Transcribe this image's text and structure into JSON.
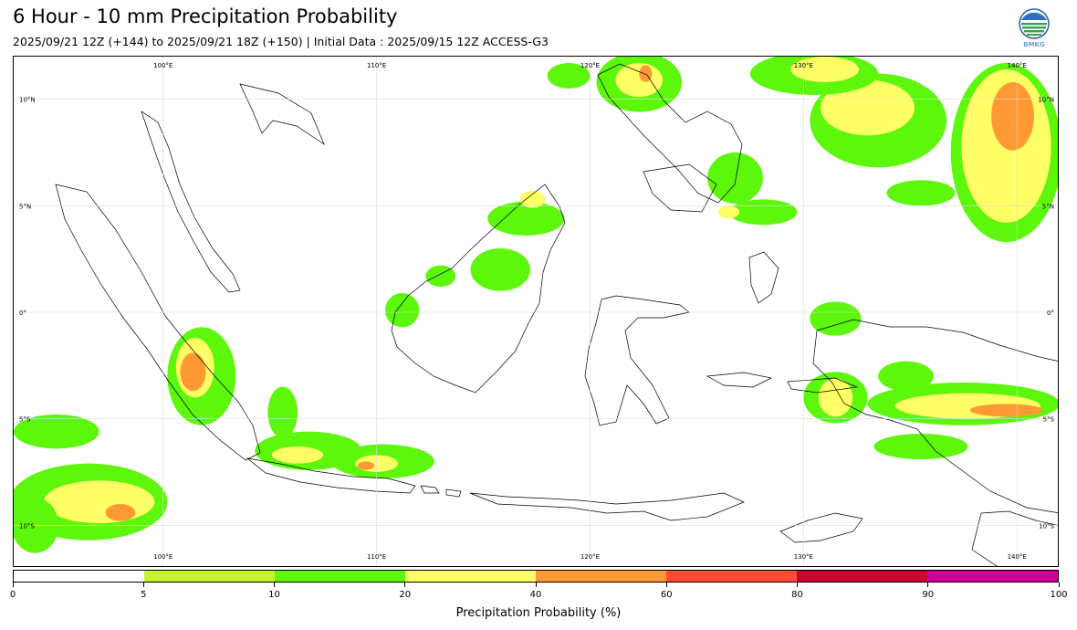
{
  "header": {
    "title": "6 Hour - 10 mm Precipitation Probability",
    "subtitle": "2025/09/21 12Z (+144) to 2025/09/21 18Z (+150) | Initial Data : 2025/09/15 12Z ACCESS-G3"
  },
  "logo": {
    "text": "BMKG",
    "icon": "bmkg-logo-icon"
  },
  "map": {
    "region": "Indonesia",
    "lon_range": [
      93,
      142
    ],
    "lat_range": [
      -12,
      12
    ],
    "grid": true,
    "lon_labels": [
      "100°E",
      "110°E",
      "120°E",
      "130°E",
      "140°E"
    ],
    "lat_labels": [
      "10°N",
      "5°N",
      "0°",
      "5°S",
      "10°S"
    ]
  },
  "colorbar": {
    "title": "Precipitation Probability (%)",
    "ticks": [
      "0",
      "5",
      "10",
      "20",
      "40",
      "60",
      "80",
      "90",
      "100"
    ],
    "colors": [
      "#ffffff",
      "#c7f232",
      "#5cf70a",
      "#ffff66",
      "#ff9933",
      "#ff4d33",
      "#cc0033",
      "#cc0099"
    ]
  },
  "precip_areas": [
    {
      "level": 10,
      "lon": 139.5,
      "lat": 7.5,
      "rx": 2.6,
      "ry": 4.2
    },
    {
      "level": 20,
      "lon": 139.5,
      "lat": 7.8,
      "rx": 2.1,
      "ry": 3.6
    },
    {
      "level": 40,
      "lon": 139.8,
      "lat": 9.2,
      "rx": 1.0,
      "ry": 1.6
    },
    {
      "level": 10,
      "lon": 133.5,
      "lat": 9.0,
      "rx": 3.2,
      "ry": 2.2
    },
    {
      "level": 20,
      "lon": 133.0,
      "lat": 9.6,
      "rx": 2.2,
      "ry": 1.3
    },
    {
      "level": 10,
      "lon": 130.5,
      "lat": 11.2,
      "rx": 3.0,
      "ry": 1.0
    },
    {
      "level": 20,
      "lon": 131.0,
      "lat": 11.4,
      "rx": 1.6,
      "ry": 0.6
    },
    {
      "level": 10,
      "lon": 135.5,
      "lat": 5.6,
      "rx": 1.6,
      "ry": 0.6
    },
    {
      "level": 10,
      "lon": 122.3,
      "lat": 10.8,
      "rx": 2.0,
      "ry": 1.4
    },
    {
      "level": 20,
      "lon": 122.3,
      "lat": 10.9,
      "rx": 1.1,
      "ry": 0.8
    },
    {
      "level": 40,
      "lon": 122.6,
      "lat": 11.2,
      "rx": 0.3,
      "ry": 0.4
    },
    {
      "level": 10,
      "lon": 119.0,
      "lat": 11.1,
      "rx": 1.0,
      "ry": 0.6
    },
    {
      "level": 10,
      "lon": 126.8,
      "lat": 6.3,
      "rx": 1.3,
      "ry": 1.2
    },
    {
      "level": 10,
      "lon": 128.1,
      "lat": 4.7,
      "rx": 1.6,
      "ry": 0.6
    },
    {
      "level": 20,
      "lon": 126.5,
      "lat": 4.7,
      "rx": 0.5,
      "ry": 0.3
    },
    {
      "level": 10,
      "lon": 117.0,
      "lat": 4.4,
      "rx": 1.8,
      "ry": 0.8
    },
    {
      "level": 20,
      "lon": 117.3,
      "lat": 5.3,
      "rx": 0.6,
      "ry": 0.4
    },
    {
      "level": 10,
      "lon": 115.8,
      "lat": 2.0,
      "rx": 1.4,
      "ry": 1.0
    },
    {
      "level": 10,
      "lon": 113.0,
      "lat": 1.7,
      "rx": 0.7,
      "ry": 0.5
    },
    {
      "level": 10,
      "lon": 111.2,
      "lat": 0.1,
      "rx": 0.8,
      "ry": 0.8
    },
    {
      "level": 10,
      "lon": 101.8,
      "lat": -3.0,
      "rx": 1.6,
      "ry": 2.3
    },
    {
      "level": 20,
      "lon": 101.5,
      "lat": -2.6,
      "rx": 0.9,
      "ry": 1.4
    },
    {
      "level": 40,
      "lon": 101.4,
      "lat": -2.8,
      "rx": 0.6,
      "ry": 0.9
    },
    {
      "level": 10,
      "lon": 106.8,
      "lat": -6.5,
      "rx": 2.5,
      "ry": 0.9
    },
    {
      "level": 20,
      "lon": 106.3,
      "lat": -6.7,
      "rx": 1.2,
      "ry": 0.4
    },
    {
      "level": 10,
      "lon": 110.3,
      "lat": -7.0,
      "rx": 2.4,
      "ry": 0.8
    },
    {
      "level": 20,
      "lon": 110.0,
      "lat": -7.1,
      "rx": 1.0,
      "ry": 0.4
    },
    {
      "level": 40,
      "lon": 109.5,
      "lat": -7.2,
      "rx": 0.4,
      "ry": 0.2
    },
    {
      "level": 10,
      "lon": 105.6,
      "lat": -4.7,
      "rx": 0.7,
      "ry": 1.2
    },
    {
      "level": 10,
      "lon": 96.5,
      "lat": -8.9,
      "rx": 3.7,
      "ry": 1.8
    },
    {
      "level": 20,
      "lon": 97.0,
      "lat": -8.9,
      "rx": 2.6,
      "ry": 1.0
    },
    {
      "level": 40,
      "lon": 98.0,
      "lat": -9.4,
      "rx": 0.7,
      "ry": 0.4
    },
    {
      "level": 10,
      "lon": 95.0,
      "lat": -5.6,
      "rx": 2.0,
      "ry": 0.8
    },
    {
      "level": 10,
      "lon": 94.0,
      "lat": -10.0,
      "rx": 1.1,
      "ry": 1.3
    },
    {
      "level": 10,
      "lon": 131.5,
      "lat": -0.3,
      "rx": 1.2,
      "ry": 0.8
    },
    {
      "level": 10,
      "lon": 131.5,
      "lat": -4.0,
      "rx": 1.5,
      "ry": 1.2
    },
    {
      "level": 20,
      "lon": 131.5,
      "lat": -4.0,
      "rx": 0.8,
      "ry": 0.9
    },
    {
      "level": 10,
      "lon": 137.5,
      "lat": -4.3,
      "rx": 4.5,
      "ry": 1.0
    },
    {
      "level": 20,
      "lon": 137.7,
      "lat": -4.4,
      "rx": 3.4,
      "ry": 0.6
    },
    {
      "level": 40,
      "lon": 139.5,
      "lat": -4.6,
      "rx": 1.7,
      "ry": 0.3
    },
    {
      "level": 10,
      "lon": 134.8,
      "lat": -3.0,
      "rx": 1.3,
      "ry": 0.7
    },
    {
      "level": 10,
      "lon": 135.5,
      "lat": -6.3,
      "rx": 2.2,
      "ry": 0.6
    }
  ]
}
